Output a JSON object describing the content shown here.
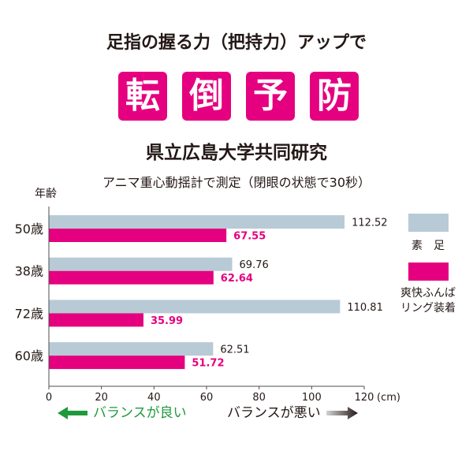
{
  "header": {
    "headline": "足指の握る力（把持力）アップで",
    "banner_chars": [
      "転",
      "倒",
      "予",
      "防"
    ],
    "organization": "県立広島大学共同研究",
    "method": "アニマ重心動揺計で測定（閉眼の状態で30秒）"
  },
  "colors": {
    "accent": "#e4007f",
    "barefoot": "#b8cad5",
    "good": "#1e9a3c",
    "text": "#231815"
  },
  "chart_data": {
    "type": "bar",
    "orientation": "horizontal",
    "ylabel": "年齢",
    "categories": [
      "50歳",
      "38歳",
      "72歳",
      "60歳"
    ],
    "series": [
      {
        "name": "素　足",
        "color": "#b8cad5",
        "values": [
          112.52,
          69.76,
          110.81,
          62.51
        ]
      },
      {
        "name": "爽快ふんば\nリング装着",
        "color": "#e4007f",
        "values": [
          67.55,
          62.64,
          35.99,
          51.72
        ]
      }
    ],
    "xlim": [
      0,
      120
    ],
    "xticks": [
      0,
      20,
      40,
      60,
      80,
      100,
      120
    ],
    "xunit": "(cm)",
    "data_labels": true,
    "legend": "right",
    "grid": false
  },
  "footer": {
    "better_label": "バランスが良い",
    "worse_label": "バランスが悪い"
  }
}
